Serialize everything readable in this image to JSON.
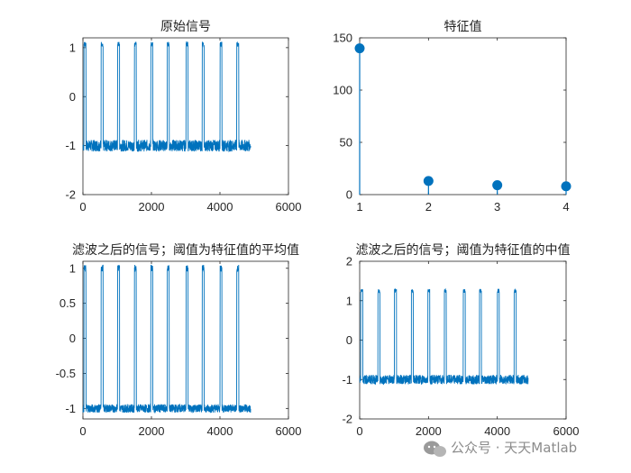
{
  "chart_data": [
    {
      "type": "line",
      "title": "原始信号",
      "xlim": [
        0,
        6000
      ],
      "ylim": [
        -2,
        1.2
      ],
      "xticks": [
        0,
        2000,
        4000,
        6000
      ],
      "yticks": [
        -2,
        -1,
        0,
        1
      ],
      "series": [
        {
          "n_points": 4900,
          "baseline": -1.0,
          "noise_amplitude": 0.12,
          "spike_peak": 1.12,
          "spike_count": 10,
          "spike_centers": [
            60,
            560,
            1040,
            1530,
            2010,
            2490,
            3040,
            3510,
            4030,
            4520
          ]
        }
      ],
      "color": "#0072BD"
    },
    {
      "type": "scatter",
      "title": "特征值",
      "xlim": [
        1,
        4
      ],
      "ylim": [
        0,
        150
      ],
      "xticks": [
        1,
        2,
        3,
        4
      ],
      "yticks": [
        0,
        50,
        100,
        150
      ],
      "x": [
        1,
        2,
        3,
        4
      ],
      "y": [
        140,
        13,
        9,
        8
      ],
      "marker": "stem",
      "color": "#0072BD"
    },
    {
      "type": "line",
      "title": "滤波之后的信号；阈值为特征值的平均值",
      "xlim": [
        0,
        6000
      ],
      "ylim": [
        -1.15,
        1.1
      ],
      "xticks": [
        0,
        2000,
        4000,
        6000
      ],
      "yticks": [
        -1,
        -0.5,
        0,
        0.5,
        1
      ],
      "series": [
        {
          "n_points": 4900,
          "baseline": -1.0,
          "noise_amplitude": 0.06,
          "spike_peak": 1.05,
          "spike_count": 10,
          "spike_centers": [
            60,
            560,
            1040,
            1530,
            2010,
            2490,
            3040,
            3510,
            4030,
            4520
          ]
        }
      ],
      "color": "#0072BD"
    },
    {
      "type": "line",
      "title": "滤波之后的信号；阈值为特征值的中值",
      "xlim": [
        0,
        6000
      ],
      "ylim": [
        -2,
        2
      ],
      "xticks": [
        0,
        2000,
        4000,
        6000
      ],
      "yticks": [
        -2,
        -1,
        0,
        1,
        2
      ],
      "series": [
        {
          "n_points": 4900,
          "baseline": -1.0,
          "noise_amplitude": 0.12,
          "spike_peak": 1.3,
          "spike_count": 10,
          "spike_centers": [
            60,
            560,
            1040,
            1530,
            2010,
            2490,
            3040,
            3510,
            4030,
            4520
          ]
        }
      ],
      "color": "#0072BD"
    }
  ],
  "watermark": {
    "text": "公众号 · 天天Matlab",
    "icon": "wechat-icon"
  }
}
